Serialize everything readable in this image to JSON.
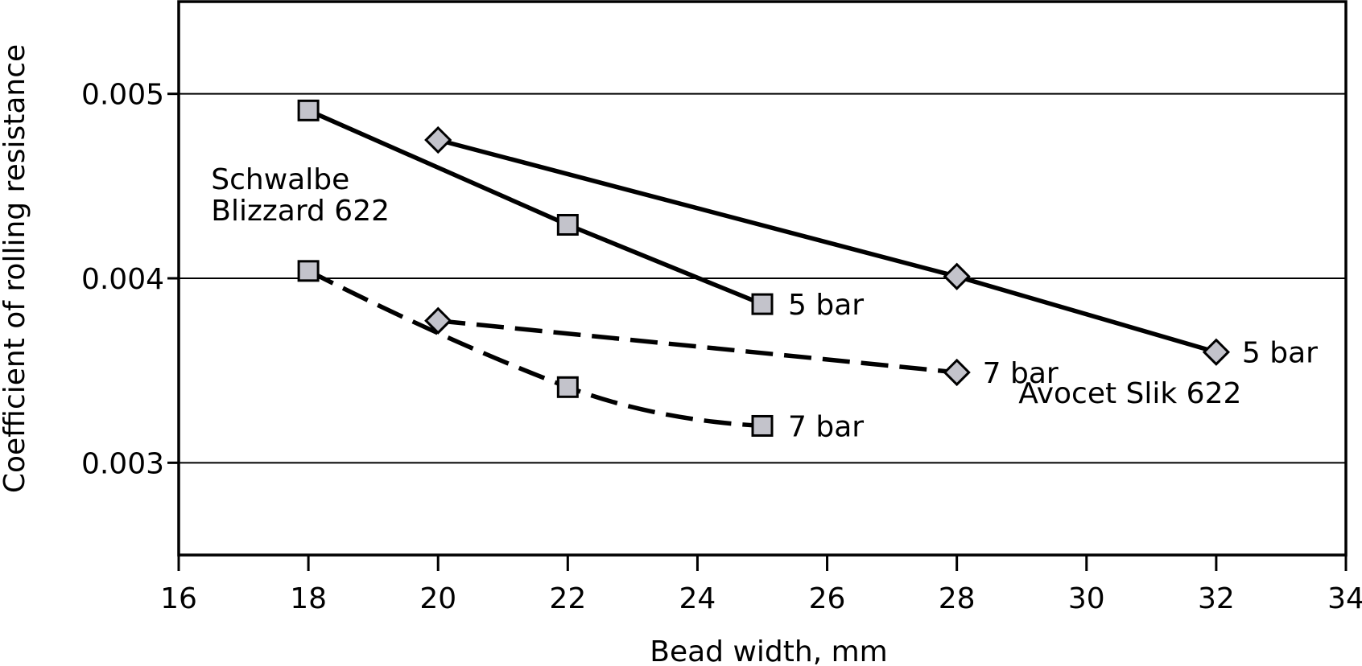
{
  "chart_data": {
    "type": "line",
    "title": "",
    "xlabel": "Bead width, mm",
    "ylabel": "Coefficient of rolling resistance",
    "xlim": [
      16,
      34
    ],
    "ylim": [
      0.0025,
      0.0055
    ],
    "x_ticks": [
      16,
      18,
      20,
      22,
      24,
      26,
      28,
      30,
      32,
      34
    ],
    "y_ticks": [
      0.003,
      0.004,
      0.005
    ],
    "y_tick_labels": [
      "0.003",
      "0.004",
      "0.005"
    ],
    "grid": "horizontal",
    "legend": "none",
    "series": [
      {
        "group": "Schwalbe Blizzard 622",
        "label": "5 bar",
        "marker": "square",
        "line": "solid",
        "x": [
          18,
          22,
          25
        ],
        "y": [
          0.00491,
          0.00429,
          0.00386
        ]
      },
      {
        "group": "Schwalbe Blizzard 622",
        "label": "7 bar",
        "marker": "square",
        "line": "dashed",
        "x": [
          18,
          22,
          25
        ],
        "y": [
          0.00404,
          0.00341,
          0.0032
        ]
      },
      {
        "group": "Avocet Slik 622",
        "label": "5 bar",
        "marker": "diamond",
        "line": "solid",
        "x": [
          20,
          28,
          32
        ],
        "y": [
          0.00475,
          0.00401,
          0.0036
        ]
      },
      {
        "group": "Avocet Slik 622",
        "label": "7 bar",
        "marker": "diamond",
        "line": "dashed",
        "x": [
          20,
          28
        ],
        "y": [
          0.00377,
          0.00349
        ]
      }
    ],
    "annotations": [
      {
        "text": "Schwalbe",
        "x": 16.5,
        "y": 0.00454,
        "anchor": "start"
      },
      {
        "text": "Blizzard 622",
        "x": 16.5,
        "y": 0.00437,
        "anchor": "start"
      },
      {
        "text": "Avocet Slik 622",
        "x": 28.95,
        "y": 0.00338,
        "anchor": "start"
      }
    ],
    "colors": {
      "marker_fill": "#c3c3cb",
      "line": "#000000"
    }
  }
}
